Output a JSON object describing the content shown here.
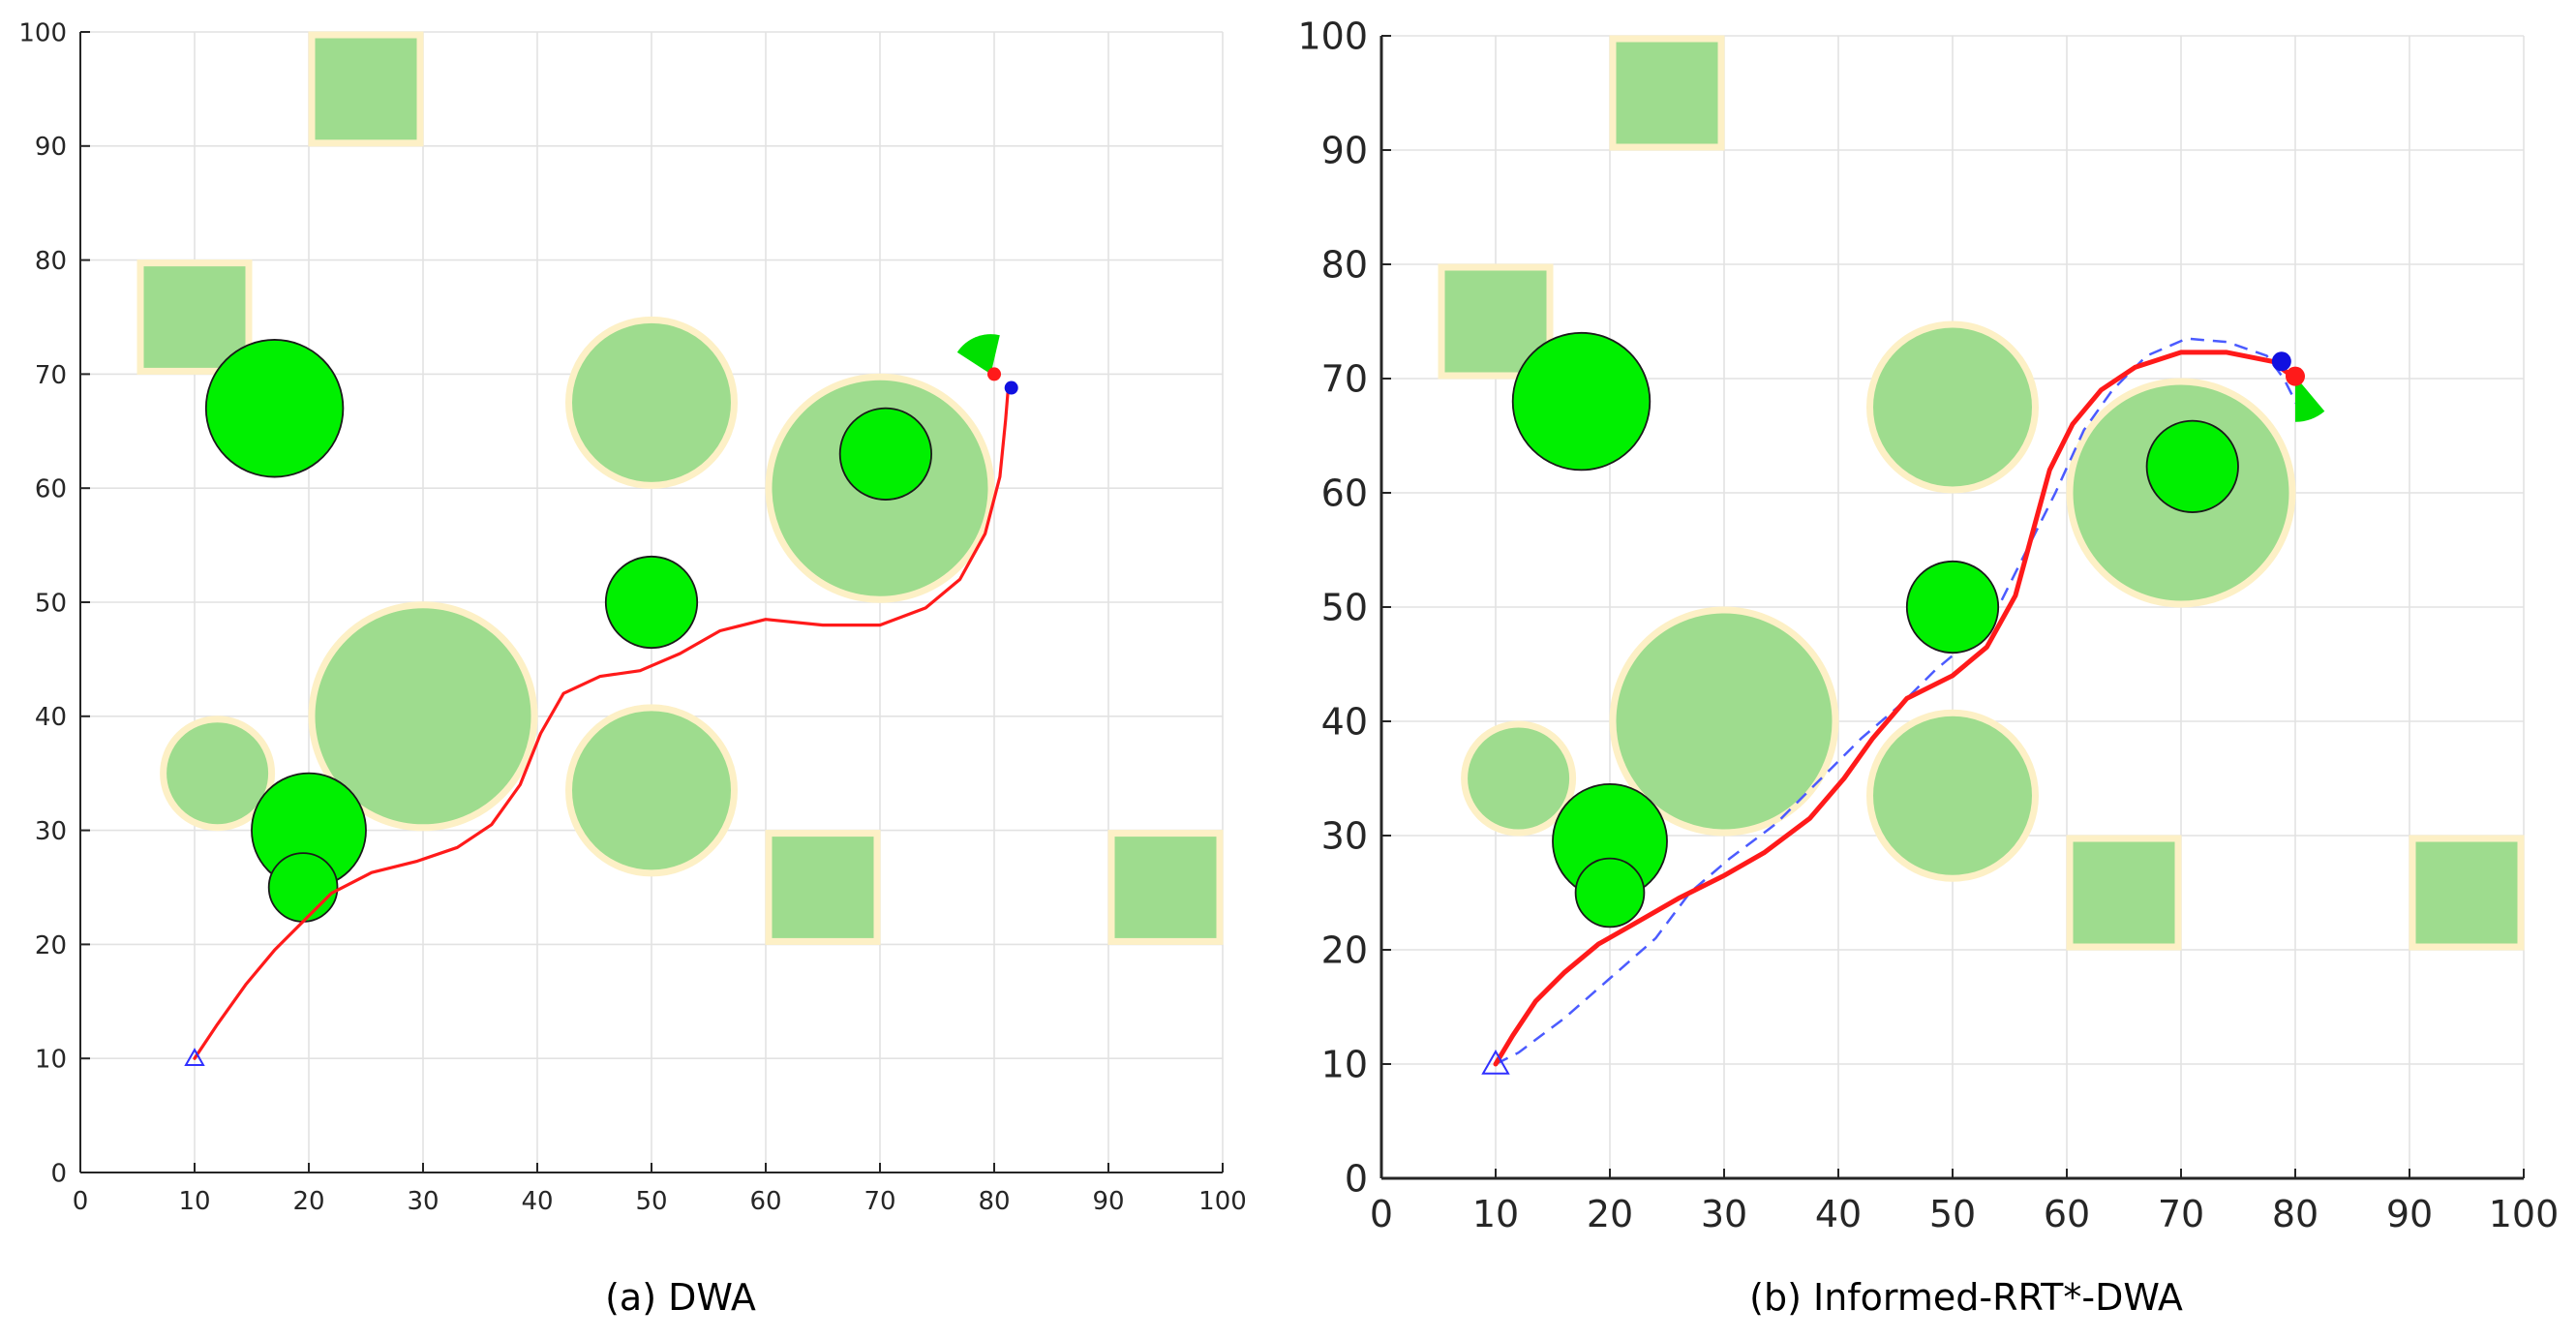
{
  "colors": {
    "grid": "#e2e2e2",
    "axis": "#262626",
    "static_fill": "#9edc8e",
    "static_edge": "#fdf0c6",
    "dynamic_fill": "#00f000",
    "dynamic_edge": "#1a1a1a",
    "trajectory": "#ff1a1a",
    "global_path": "#4b5bff",
    "start_marker": "#3030ff",
    "robot_blue": "#1010e0",
    "robot_red": "#ff1a1a",
    "window_green": "#00e000"
  },
  "chart_data": [
    {
      "panel": "a",
      "type": "scatter",
      "title": "",
      "caption": "(a) DWA",
      "xlabel": "",
      "ylabel": "",
      "xlim": [
        0,
        100
      ],
      "ylim": [
        0,
        100
      ],
      "xticks": [
        "0",
        "10",
        "20",
        "30",
        "40",
        "50",
        "60",
        "70",
        "80",
        "90",
        "100"
      ],
      "yticks": [
        "0",
        "10",
        "20",
        "30",
        "40",
        "50",
        "60",
        "70",
        "80",
        "90",
        "100"
      ],
      "grid": true,
      "static_circles": [
        {
          "x": 12,
          "y": 35,
          "r": 5
        },
        {
          "x": 30,
          "y": 40,
          "r": 10
        },
        {
          "x": 50,
          "y": 67.5,
          "r": 7.5
        },
        {
          "x": 50,
          "y": 33.5,
          "r": 7.5
        },
        {
          "x": 70,
          "y": 60,
          "r": 10
        }
      ],
      "static_squares": [
        {
          "x0": 20,
          "y0": 90,
          "x1": 30,
          "y1": 100
        },
        {
          "x0": 5,
          "y0": 70,
          "x1": 15,
          "y1": 80
        },
        {
          "x0": 60,
          "y0": 20,
          "x1": 70,
          "y1": 30
        },
        {
          "x0": 90,
          "y0": 20,
          "x1": 100,
          "y1": 30
        }
      ],
      "dynamic_circles": [
        {
          "x": 17,
          "y": 67,
          "r": 6
        },
        {
          "x": 20,
          "y": 30,
          "r": 5
        },
        {
          "x": 19.5,
          "y": 25,
          "r": 3
        },
        {
          "x": 50,
          "y": 50,
          "r": 4
        },
        {
          "x": 70.5,
          "y": 63,
          "r": 4
        }
      ],
      "start": {
        "x": 10,
        "y": 10
      },
      "trajectory": [
        [
          10,
          10
        ],
        [
          12,
          13
        ],
        [
          14.5,
          16.5
        ],
        [
          17,
          19.5
        ],
        [
          19.5,
          22
        ],
        [
          22,
          24.5
        ],
        [
          25.5,
          26.3
        ],
        [
          29.5,
          27.3
        ],
        [
          33,
          28.5
        ],
        [
          36,
          30.5
        ],
        [
          38.5,
          34
        ],
        [
          40.3,
          38.5
        ],
        [
          42.3,
          42
        ],
        [
          45.5,
          43.5
        ],
        [
          49,
          44
        ],
        [
          52.5,
          45.5
        ],
        [
          56,
          47.5
        ],
        [
          60,
          48.5
        ],
        [
          65,
          48
        ],
        [
          70,
          48
        ],
        [
          74,
          49.5
        ],
        [
          77,
          52
        ],
        [
          79.2,
          56
        ],
        [
          80.5,
          61
        ],
        [
          81,
          66
        ],
        [
          81.2,
          68.5
        ]
      ],
      "global_path": [],
      "robot": {
        "blue": {
          "x": 81.5,
          "y": 68.8
        },
        "red": {
          "x": 80,
          "y": 70
        }
      },
      "window": {
        "x": 79.7,
        "y": 70,
        "r": 3.5,
        "heading_deg": 112,
        "span_deg": 70
      }
    },
    {
      "panel": "b",
      "type": "scatter",
      "title": "",
      "caption": "(b) Informed-RRT*-DWA",
      "xlabel": "",
      "ylabel": "",
      "xlim": [
        0,
        100
      ],
      "ylim": [
        0,
        100
      ],
      "xticks": [
        "0",
        "10",
        "20",
        "30",
        "40",
        "50",
        "60",
        "70",
        "80",
        "90",
        "100"
      ],
      "yticks": [
        "0",
        "10",
        "20",
        "30",
        "40",
        "50",
        "60",
        "70",
        "80",
        "90",
        "100"
      ],
      "grid": true,
      "static_circles": [
        {
          "x": 12,
          "y": 35,
          "r": 5
        },
        {
          "x": 30,
          "y": 40,
          "r": 10
        },
        {
          "x": 50,
          "y": 67.5,
          "r": 7.5
        },
        {
          "x": 50,
          "y": 33.5,
          "r": 7.5
        },
        {
          "x": 70,
          "y": 60,
          "r": 10
        }
      ],
      "static_squares": [
        {
          "x0": 20,
          "y0": 90,
          "x1": 30,
          "y1": 100
        },
        {
          "x0": 5,
          "y0": 70,
          "x1": 15,
          "y1": 80
        },
        {
          "x0": 60,
          "y0": 20,
          "x1": 70,
          "y1": 30
        },
        {
          "x0": 90,
          "y0": 20,
          "x1": 100,
          "y1": 30
        }
      ],
      "dynamic_circles": [
        {
          "x": 17.5,
          "y": 68,
          "r": 6
        },
        {
          "x": 20,
          "y": 29.5,
          "r": 5
        },
        {
          "x": 20,
          "y": 25,
          "r": 3
        },
        {
          "x": 50,
          "y": 50,
          "r": 4
        },
        {
          "x": 71,
          "y": 62.3,
          "r": 4
        }
      ],
      "start": {
        "x": 10,
        "y": 10
      },
      "trajectory": [
        [
          10,
          10
        ],
        [
          11.5,
          12.5
        ],
        [
          13.5,
          15.5
        ],
        [
          16,
          18
        ],
        [
          19,
          20.5
        ],
        [
          22,
          22.2
        ],
        [
          26,
          24.5
        ],
        [
          30,
          26.5
        ],
        [
          33.5,
          28.5
        ],
        [
          37.5,
          31.5
        ],
        [
          40.5,
          35
        ],
        [
          43,
          38.5
        ],
        [
          46,
          42
        ],
        [
          50,
          44
        ],
        [
          53,
          46.5
        ],
        [
          55.5,
          51
        ],
        [
          57,
          56.5
        ],
        [
          58.5,
          62
        ],
        [
          60.5,
          66
        ],
        [
          63,
          69
        ],
        [
          66,
          71
        ],
        [
          70,
          72.3
        ],
        [
          74,
          72.3
        ],
        [
          78,
          71.5
        ],
        [
          80,
          70
        ]
      ],
      "global_path": [
        [
          10,
          10
        ],
        [
          12,
          11
        ],
        [
          16,
          14
        ],
        [
          20,
          17.5
        ],
        [
          24,
          21
        ],
        [
          27,
          25
        ],
        [
          30.5,
          28
        ],
        [
          34.5,
          31
        ],
        [
          38.5,
          35
        ],
        [
          42,
          38.5
        ],
        [
          45.5,
          41.5
        ],
        [
          48.5,
          44.5
        ],
        [
          51.5,
          47
        ],
        [
          54,
          50
        ],
        [
          56.5,
          55
        ],
        [
          59,
          60
        ],
        [
          61.5,
          65.5
        ],
        [
          64,
          69
        ],
        [
          67,
          72
        ],
        [
          70.5,
          73.5
        ],
        [
          74,
          73.2
        ],
        [
          77.5,
          72
        ],
        [
          79,
          70
        ],
        [
          80,
          68
        ],
        [
          80.5,
          67
        ]
      ],
      "robot": {
        "blue": {
          "x": 78.8,
          "y": 71.5
        },
        "red": {
          "x": 80,
          "y": 70.2
        }
      },
      "window": {
        "x": 80,
        "y": 70.2,
        "r": 4,
        "heading_deg": -70,
        "span_deg": 40
      }
    }
  ]
}
